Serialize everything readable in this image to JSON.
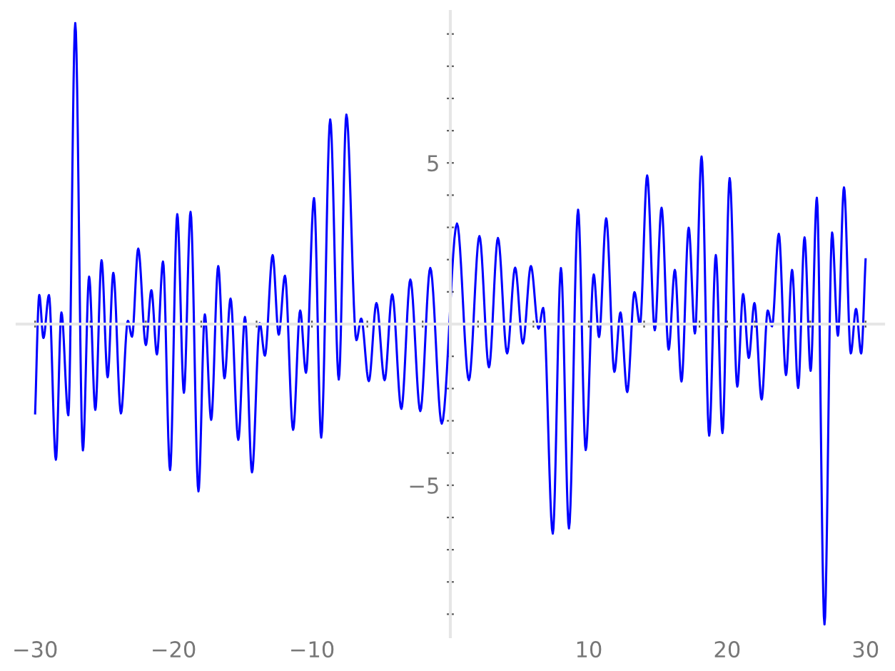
{
  "chart_data": {
    "type": "line",
    "line_style": "solid",
    "marker": "none",
    "grid": false,
    "legend": false,
    "xlim": [
      -31.3,
      31.3
    ],
    "ylim": [
      -9.7,
      9.7
    ],
    "xticks": [
      {
        "value": -30,
        "label": "−30"
      },
      {
        "value": -26,
        "label": null
      },
      {
        "value": -22,
        "label": null
      },
      {
        "value": -20,
        "label": "−20"
      },
      {
        "value": -18,
        "label": null
      },
      {
        "value": -14,
        "label": null
      },
      {
        "value": -10,
        "label": "−10"
      },
      {
        "value": -6,
        "label": null
      },
      {
        "value": -2,
        "label": null
      },
      {
        "value": 2,
        "label": null
      },
      {
        "value": 6,
        "label": null
      },
      {
        "value": 10,
        "label": "10"
      },
      {
        "value": 14,
        "label": null
      },
      {
        "value": 18,
        "label": null
      },
      {
        "value": 20,
        "label": "20"
      },
      {
        "value": 22,
        "label": null
      },
      {
        "value": 26,
        "label": null
      },
      {
        "value": 30,
        "label": "30"
      }
    ],
    "yticks": [
      {
        "value": -9,
        "label": null
      },
      {
        "value": -8,
        "label": null
      },
      {
        "value": -7,
        "label": null
      },
      {
        "value": -6,
        "label": null
      },
      {
        "value": -5,
        "label": "−5"
      },
      {
        "value": -4,
        "label": null
      },
      {
        "value": -3,
        "label": null
      },
      {
        "value": -2,
        "label": null
      },
      {
        "value": -1,
        "label": null
      },
      {
        "value": 1,
        "label": null
      },
      {
        "value": 2,
        "label": null
      },
      {
        "value": 3,
        "label": null
      },
      {
        "value": 4,
        "label": null
      },
      {
        "value": 5,
        "label": "5"
      },
      {
        "value": 6,
        "label": null
      },
      {
        "value": 7,
        "label": null
      },
      {
        "value": 8,
        "label": null
      },
      {
        "value": 9,
        "label": null
      }
    ],
    "series": [
      {
        "color": "#0000ff",
        "x": [
          -30.0,
          -29.7,
          -29.4,
          -29.0,
          -28.5,
          -28.1,
          -27.6,
          -27.1,
          -26.55,
          -26.1,
          -25.65,
          -25.2,
          -24.76,
          -24.35,
          -23.8,
          -23.3,
          -23.0,
          -22.55,
          -22.0,
          -21.6,
          -21.2,
          -20.76,
          -20.25,
          -19.73,
          -19.25,
          -18.77,
          -18.2,
          -17.74,
          -17.28,
          -16.77,
          -16.32,
          -15.88,
          -15.32,
          -14.84,
          -14.33,
          -13.77,
          -13.4,
          -12.84,
          -12.4,
          -11.95,
          -11.36,
          -10.85,
          -10.43,
          -9.85,
          -9.33,
          -8.68,
          -8.06,
          -7.51,
          -6.79,
          -6.44,
          -5.89,
          -5.34,
          -4.75,
          -4.2,
          -3.54,
          -2.89,
          -2.17,
          -1.45,
          -0.62,
          0.48,
          1.34,
          2.1,
          2.79,
          3.44,
          4.1,
          4.68,
          5.24,
          5.82,
          6.37,
          6.71,
          7.4,
          7.99,
          8.57,
          9.23,
          9.78,
          10.36,
          10.74,
          11.26,
          11.85,
          12.29,
          12.78,
          13.3,
          13.7,
          14.22,
          14.77,
          15.26,
          15.77,
          16.22,
          16.7,
          17.22,
          17.67,
          18.15,
          18.7,
          19.18,
          19.66,
          20.18,
          20.73,
          21.15,
          21.56,
          21.97,
          22.49,
          22.93,
          23.24,
          23.73,
          24.25,
          24.69,
          25.13,
          25.59,
          26.03,
          26.48,
          27.03,
          27.58,
          28.0,
          28.44,
          28.93,
          29.31,
          29.68,
          30.0
        ],
        "values": [
          -2.77,
          0.9,
          -0.43,
          0.9,
          -4.21,
          0.36,
          -2.83,
          9.34,
          -3.92,
          1.47,
          -2.66,
          1.98,
          -1.65,
          1.59,
          -2.77,
          0.1,
          -0.39,
          2.34,
          -0.65,
          1.05,
          -0.94,
          1.94,
          -4.53,
          3.41,
          -2.13,
          3.48,
          -5.19,
          0.3,
          -2.97,
          1.8,
          -1.68,
          0.79,
          -3.59,
          0.22,
          -4.6,
          0.03,
          -0.98,
          2.14,
          -0.33,
          1.5,
          -3.28,
          0.42,
          -1.51,
          3.91,
          -3.52,
          6.35,
          -1.72,
          6.5,
          -0.5,
          0.17,
          -1.77,
          0.65,
          -1.74,
          0.92,
          -2.63,
          1.38,
          -2.7,
          1.74,
          -3.09,
          3.12,
          -1.74,
          2.73,
          -1.34,
          2.67,
          -0.91,
          1.75,
          -0.6,
          1.8,
          -0.14,
          0.5,
          -6.5,
          1.74,
          -6.34,
          3.55,
          -3.91,
          1.54,
          -0.4,
          3.28,
          -1.48,
          0.36,
          -2.11,
          0.99,
          -0.01,
          4.61,
          -0.19,
          3.61,
          -0.79,
          1.68,
          -1.78,
          2.99,
          -0.29,
          5.2,
          -3.46,
          2.14,
          -3.38,
          4.53,
          -1.94,
          0.93,
          -1.05,
          0.65,
          -2.34,
          0.42,
          -0.07,
          2.8,
          -1.58,
          1.68,
          -1.98,
          2.69,
          -1.45,
          3.92,
          -9.32,
          2.84,
          -0.36,
          4.24,
          -0.91,
          0.47,
          -0.91,
          2.01
        ]
      }
    ]
  }
}
